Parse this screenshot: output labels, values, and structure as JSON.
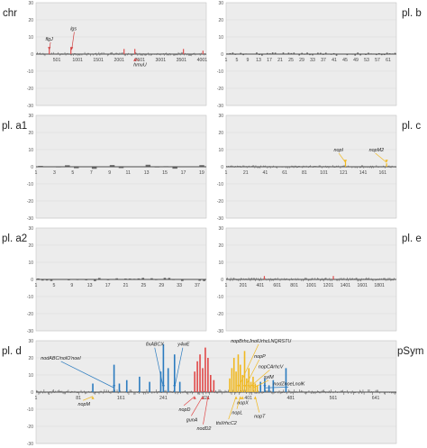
{
  "chart_data": [
    {
      "panel": "chr",
      "type": "bar",
      "side": "left",
      "ylim": [
        -30,
        30
      ],
      "yticks": [
        -30,
        -20,
        -10,
        0,
        10,
        20,
        30
      ],
      "xlim": [
        1,
        4100
      ],
      "xticks": [
        "501",
        "1001",
        "1501",
        "2001",
        "2501",
        "3001",
        "3501",
        "4001"
      ],
      "xtick_values": [
        501,
        1001,
        1501,
        2001,
        2501,
        3001,
        3501,
        4001
      ],
      "noise_amplitude": 1.2,
      "noise_count": 180,
      "highlights": [
        {
          "x": 320,
          "value": 4,
          "color": "#e05050"
        },
        {
          "x": 840,
          "value": 4,
          "color": "#e05050"
        },
        {
          "x": 2120,
          "value": 3,
          "color": "#e05050"
        },
        {
          "x": 2380,
          "value": 3,
          "color": "#e05050"
        },
        {
          "x": 3550,
          "value": 3,
          "color": "#e05050"
        },
        {
          "x": 4020,
          "value": 2,
          "color": "#e05050"
        }
      ],
      "annotations": [
        {
          "text": "flgJ",
          "x": 320,
          "color": "#d04040",
          "tx": 228,
          "ty": 8
        },
        {
          "text": "lgs",
          "x": 860,
          "color": "#d04040",
          "tx": 830,
          "ty": 14
        },
        {
          "text": "hmuU",
          "x": 2380,
          "color": "#d04040",
          "tx": 2350,
          "ty": -7
        }
      ]
    },
    {
      "panel": "pl. b",
      "type": "bar",
      "side": "right",
      "ylim": [
        -30,
        30
      ],
      "yticks": [
        -30,
        -20,
        -10,
        0,
        10,
        20,
        30
      ],
      "xlim": [
        1,
        64
      ],
      "xticks": [
        "1",
        "5",
        "9",
        "13",
        "17",
        "21",
        "25",
        "29",
        "33",
        "37",
        "41",
        "45",
        "49",
        "53",
        "57",
        "61"
      ],
      "xtick_values": [
        1,
        5,
        9,
        13,
        17,
        21,
        25,
        29,
        33,
        37,
        41,
        45,
        49,
        53,
        57,
        61
      ],
      "noise_amplitude": 1.0,
      "noise_count": 64,
      "highlights": [],
      "annotations": []
    },
    {
      "panel": "pl. a1",
      "type": "bar",
      "side": "left",
      "ylim": [
        -30,
        30
      ],
      "yticks": [
        -30,
        -20,
        -10,
        0,
        10,
        20,
        30
      ],
      "xlim": [
        1,
        19.5
      ],
      "xticks": [
        "1",
        "3",
        "5",
        "7",
        "9",
        "11",
        "13",
        "15",
        "17",
        "19"
      ],
      "xtick_values": [
        1,
        3,
        5,
        7,
        9,
        11,
        13,
        15,
        17,
        19
      ],
      "noise_amplitude": 1.2,
      "noise_count": 19,
      "highlights": [],
      "annotations": []
    },
    {
      "panel": "pl. c",
      "type": "bar",
      "side": "right",
      "ylim": [
        -30,
        30
      ],
      "yticks": [
        -30,
        -20,
        -10,
        0,
        10,
        20,
        30
      ],
      "xlim": [
        1,
        175
      ],
      "xticks": [
        "1",
        "21",
        "41",
        "61",
        "81",
        "101",
        "121",
        "141",
        "161"
      ],
      "xtick_values": [
        1,
        21,
        41,
        61,
        81,
        101,
        121,
        141,
        161
      ],
      "noise_amplitude": 1.0,
      "noise_count": 175,
      "highlights": [
        {
          "x": 123,
          "value": 3,
          "color": "#f0b820"
        },
        {
          "x": 165,
          "value": 2,
          "color": "#f0b820"
        }
      ],
      "annotations": [
        {
          "text": "nopI",
          "x": 123,
          "color": "#f0b820",
          "tx": 111,
          "ty": 9
        },
        {
          "text": "nopM2",
          "x": 165,
          "color": "#f0b820",
          "tx": 147,
          "ty": 9
        }
      ]
    },
    {
      "panel": "pl. a2",
      "type": "bar",
      "side": "left",
      "ylim": [
        -30,
        30
      ],
      "yticks": [
        -30,
        -20,
        -10,
        0,
        10,
        20,
        30
      ],
      "xlim": [
        1,
        39
      ],
      "xticks": [
        "1",
        "5",
        "9",
        "13",
        "17",
        "21",
        "25",
        "29",
        "33",
        "37"
      ],
      "xtick_values": [
        1,
        5,
        9,
        13,
        17,
        21,
        25,
        29,
        33,
        37
      ],
      "noise_amplitude": 1.0,
      "noise_count": 39,
      "highlights": [],
      "annotations": []
    },
    {
      "panel": "pl. e",
      "type": "bar",
      "side": "right",
      "ylim": [
        -30,
        30
      ],
      "yticks": [
        -30,
        -20,
        -10,
        0,
        10,
        20,
        30
      ],
      "xlim": [
        1,
        2000
      ],
      "xticks": [
        "1",
        "201",
        "401",
        "601",
        "801",
        "1001",
        "1201",
        "1401",
        "1601",
        "1801"
      ],
      "xtick_values": [
        1,
        201,
        401,
        601,
        801,
        1001,
        1201,
        1401,
        1601,
        1801
      ],
      "noise_amplitude": 1.2,
      "noise_count": 200,
      "highlights": [
        {
          "x": 450,
          "value": 2,
          "color": "#e05050"
        },
        {
          "x": 1260,
          "value": 2,
          "color": "#e05050"
        }
      ],
      "annotations": []
    },
    {
      "panel": "pl. d",
      "type": "bar",
      "side": "full",
      "right_label": "pSym",
      "ylim": [
        -30,
        30
      ],
      "yticks": [
        -30,
        -20,
        -10,
        0,
        10,
        20,
        30
      ],
      "xlim": [
        1,
        680
      ],
      "xticks": [
        "1",
        "81",
        "161",
        "241",
        "321",
        "401",
        "481",
        "561",
        "641"
      ],
      "xtick_values": [
        1,
        81,
        161,
        241,
        321,
        401,
        481,
        561,
        641
      ],
      "noise_amplitude": 1.6,
      "noise_count": 340,
      "highlights": [
        {
          "x": 108,
          "value": 5,
          "color": "#2b7bbf"
        },
        {
          "x": 148,
          "value": 16,
          "color": "#2b7bbf"
        },
        {
          "x": 158,
          "value": 5,
          "color": "#2b7bbf"
        },
        {
          "x": 172,
          "value": 7,
          "color": "#2b7bbf"
        },
        {
          "x": 196,
          "value": 9,
          "color": "#2b7bbf"
        },
        {
          "x": 215,
          "value": 6,
          "color": "#2b7bbf"
        },
        {
          "x": 236,
          "value": 12,
          "color": "#2b7bbf"
        },
        {
          "x": 241,
          "value": 28,
          "color": "#2b7bbf"
        },
        {
          "x": 250,
          "value": 14,
          "color": "#2b7bbf"
        },
        {
          "x": 262,
          "value": 22,
          "color": "#2b7bbf"
        },
        {
          "x": 272,
          "value": 6,
          "color": "#2b7bbf"
        },
        {
          "x": 300,
          "value": 12,
          "color": "#e04848"
        },
        {
          "x": 305,
          "value": 18,
          "color": "#e04848"
        },
        {
          "x": 310,
          "value": 22,
          "color": "#e04848"
        },
        {
          "x": 315,
          "value": 14,
          "color": "#e04848"
        },
        {
          "x": 320,
          "value": 26,
          "color": "#e04848"
        },
        {
          "x": 325,
          "value": 20,
          "color": "#e04848"
        },
        {
          "x": 330,
          "value": 10,
          "color": "#e04848"
        },
        {
          "x": 336,
          "value": 7,
          "color": "#e04848"
        },
        {
          "x": 366,
          "value": 8,
          "color": "#f0b820"
        },
        {
          "x": 370,
          "value": 14,
          "color": "#f0b820"
        },
        {
          "x": 374,
          "value": 20,
          "color": "#f0b820"
        },
        {
          "x": 378,
          "value": 12,
          "color": "#f0b820"
        },
        {
          "x": 382,
          "value": 22,
          "color": "#f0b820"
        },
        {
          "x": 386,
          "value": 16,
          "color": "#f0b820"
        },
        {
          "x": 390,
          "value": 10,
          "color": "#f0b820"
        },
        {
          "x": 394,
          "value": 24,
          "color": "#f0b820"
        },
        {
          "x": 398,
          "value": 8,
          "color": "#f0b820"
        },
        {
          "x": 402,
          "value": 14,
          "color": "#f0b820"
        },
        {
          "x": 406,
          "value": 6,
          "color": "#f0b820"
        },
        {
          "x": 410,
          "value": 9,
          "color": "#f0b820"
        },
        {
          "x": 414,
          "value": 5,
          "color": "#f0b820"
        },
        {
          "x": 418,
          "value": 4,
          "color": "#f0b820"
        },
        {
          "x": 424,
          "value": 6,
          "color": "#2b7bbf"
        },
        {
          "x": 432,
          "value": 8,
          "color": "#2b7bbf"
        },
        {
          "x": 440,
          "value": 4,
          "color": "#2b7bbf"
        },
        {
          "x": 448,
          "value": 7,
          "color": "#2b7bbf"
        },
        {
          "x": 472,
          "value": 14,
          "color": "#2b7bbf"
        }
      ],
      "annotations": [
        {
          "text": "nodABC/nolO'noeI",
          "x": 148,
          "color": "#2b7bbf",
          "tx": 10,
          "ty": 19
        },
        {
          "text": "fixABCX",
          "x": 241,
          "color": "#2b7bbf",
          "tx": 208,
          "ty": 27
        },
        {
          "text": "y4wE",
          "x": 262,
          "color": "#2b7bbf",
          "tx": 268,
          "ty": 27
        },
        {
          "text": "nopM",
          "x": 108,
          "color": "#f0b820",
          "tx": 80,
          "ty": -8
        },
        {
          "text": "nopD",
          "x": 300,
          "color": "#e04848",
          "tx": 270,
          "ty": -11
        },
        {
          "text": "gunA",
          "x": 315,
          "color": "#e04848",
          "tx": 284,
          "ty": -17
        },
        {
          "text": "nodD2",
          "x": 325,
          "color": "#e04848",
          "tx": 304,
          "ty": -22
        },
        {
          "text": "nopBrhcJnolUrhcLNQRSTU",
          "x": 382,
          "color": "#f0b820",
          "tx": 368,
          "ty": 29
        },
        {
          "text": "nopP",
          "x": 394,
          "color": "#f0b820",
          "tx": 412,
          "ty": 20
        },
        {
          "text": "nopCArhcV",
          "x": 402,
          "color": "#f0b820",
          "tx": 420,
          "ty": 14
        },
        {
          "text": "sylM",
          "x": 410,
          "color": "#f0b820",
          "tx": 430,
          "ty": 8
        },
        {
          "text": "nodZnoeLnolK",
          "x": 432,
          "color": "#2b7bbf",
          "tx": 448,
          "ty": 4
        },
        {
          "text": "nopX",
          "x": 390,
          "color": "#f0b820",
          "tx": 380,
          "ty": -7
        },
        {
          "text": "nopL",
          "x": 386,
          "color": "#f0b820",
          "tx": 370,
          "ty": -13
        },
        {
          "text": "ttsI/rhcC2",
          "x": 378,
          "color": "#f0b820",
          "tx": 340,
          "ty": -19
        },
        {
          "text": "nopT",
          "x": 414,
          "color": "#f0b820",
          "tx": 412,
          "ty": -15
        }
      ]
    }
  ]
}
